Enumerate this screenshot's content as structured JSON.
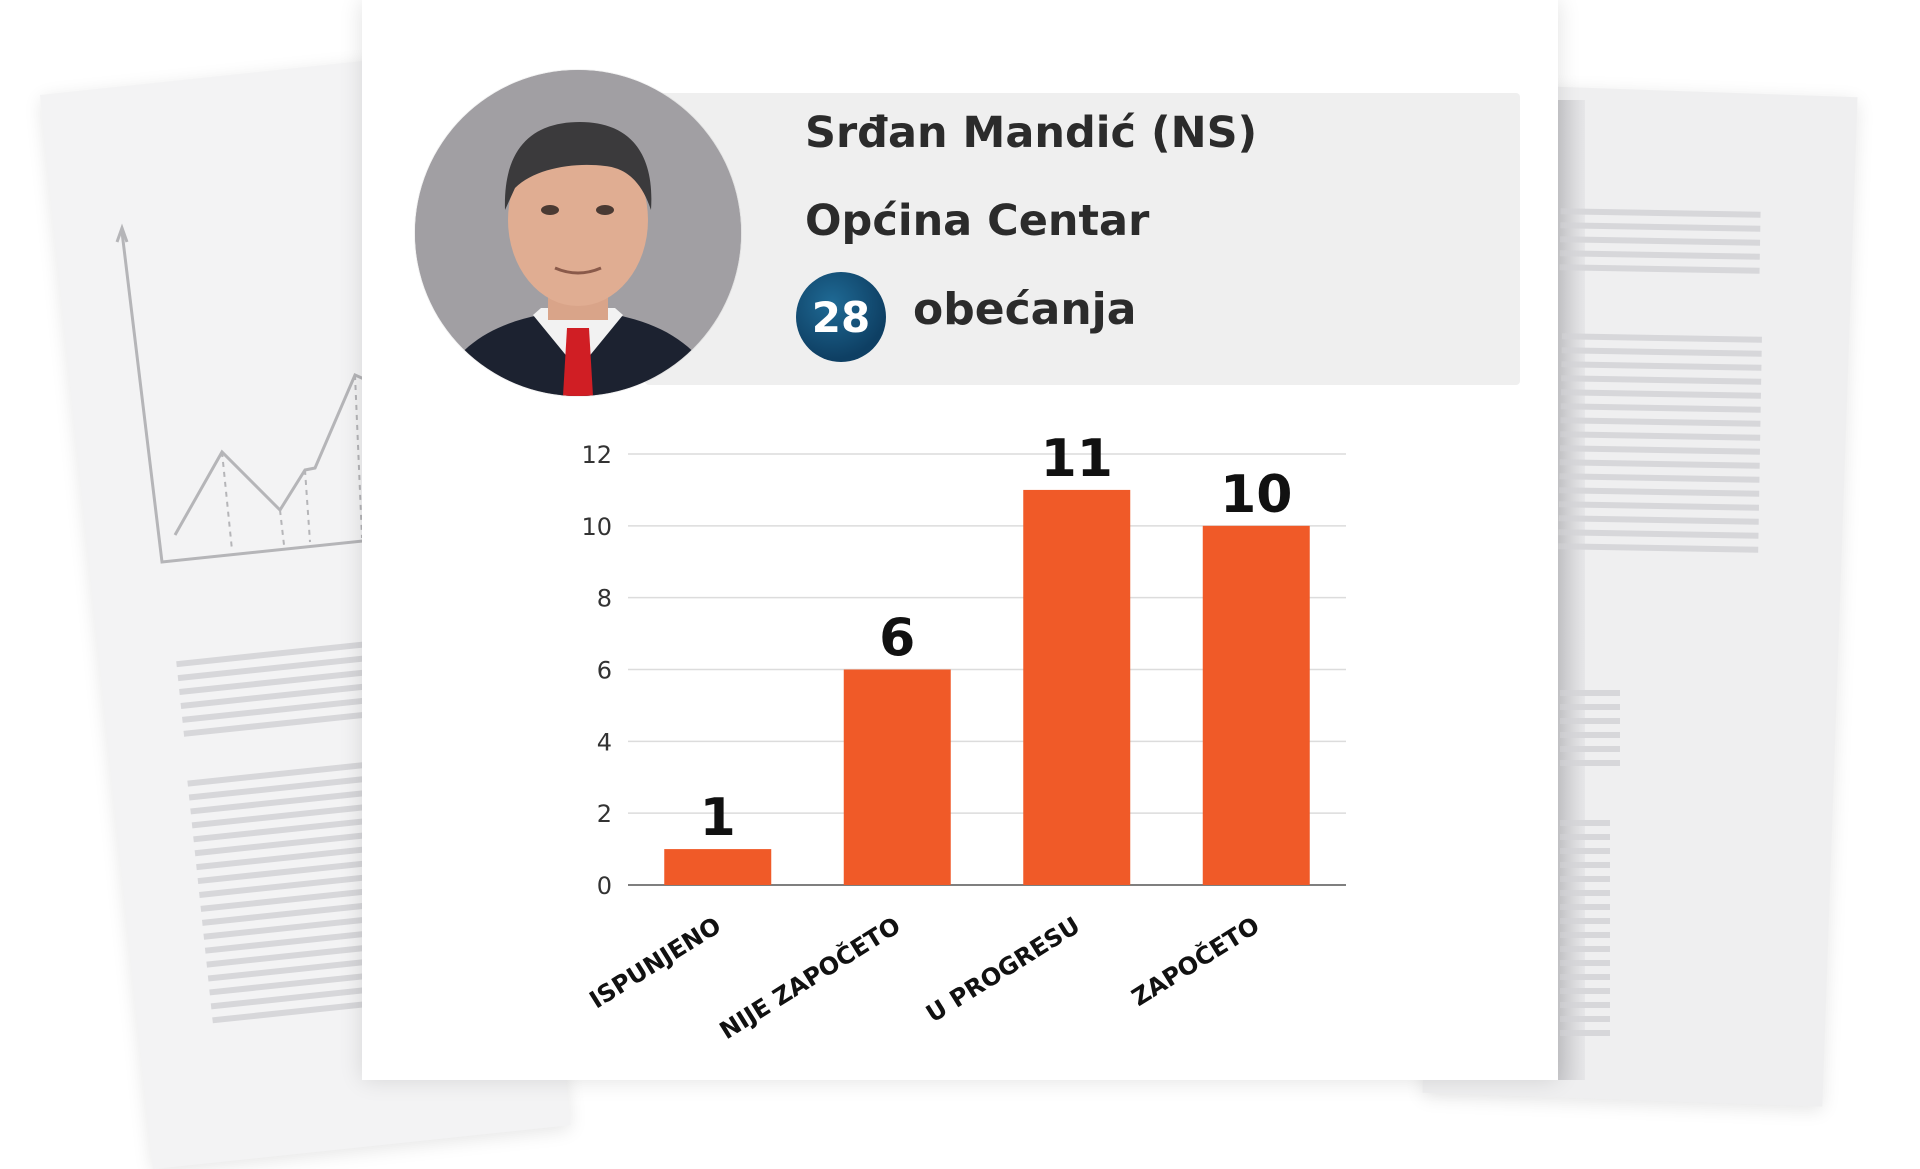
{
  "profile": {
    "name": "Srđan Mandić (NS)",
    "region": "Općina Centar",
    "promises_count": "28",
    "promises_label": "obećanja"
  },
  "colors": {
    "bar": "#f05a28",
    "badge": "#0e3f63",
    "card": "#efefef"
  },
  "chart_data": {
    "type": "bar",
    "categories": [
      "ISPUNJENO",
      "NIJE ZAPOČETO",
      "U PROGRESU",
      "ZAPOČETO"
    ],
    "values": [
      1,
      6,
      11,
      10
    ],
    "value_labels": [
      "1",
      "6",
      "11",
      "10"
    ],
    "yticks": [
      "0",
      "2",
      "4",
      "6",
      "8",
      "10",
      "12"
    ],
    "ylim": [
      0,
      12
    ],
    "grid": true
  }
}
